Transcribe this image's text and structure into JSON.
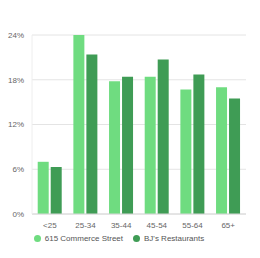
{
  "chart_data": {
    "type": "bar",
    "categories": [
      "<25",
      "25-34",
      "35-44",
      "45-54",
      "55-64",
      "65+"
    ],
    "series": [
      {
        "name": "615 Commerce Street",
        "color": "#6fdc80",
        "values": [
          7.0,
          24.0,
          17.8,
          18.4,
          16.7,
          17.0
        ]
      },
      {
        "name": "BJ's Restaurants",
        "color": "#3f9c55",
        "values": [
          6.3,
          21.4,
          18.4,
          20.7,
          18.7,
          15.5
        ]
      }
    ],
    "ylim": [
      0,
      24
    ],
    "yticks": [
      {
        "value": 0,
        "label": "0%"
      },
      {
        "value": 6,
        "label": "6%"
      },
      {
        "value": 12,
        "label": "12%"
      },
      {
        "value": 18,
        "label": "18%"
      },
      {
        "value": 24,
        "label": "24%"
      }
    ],
    "grid": true,
    "legend": "bottom"
  }
}
